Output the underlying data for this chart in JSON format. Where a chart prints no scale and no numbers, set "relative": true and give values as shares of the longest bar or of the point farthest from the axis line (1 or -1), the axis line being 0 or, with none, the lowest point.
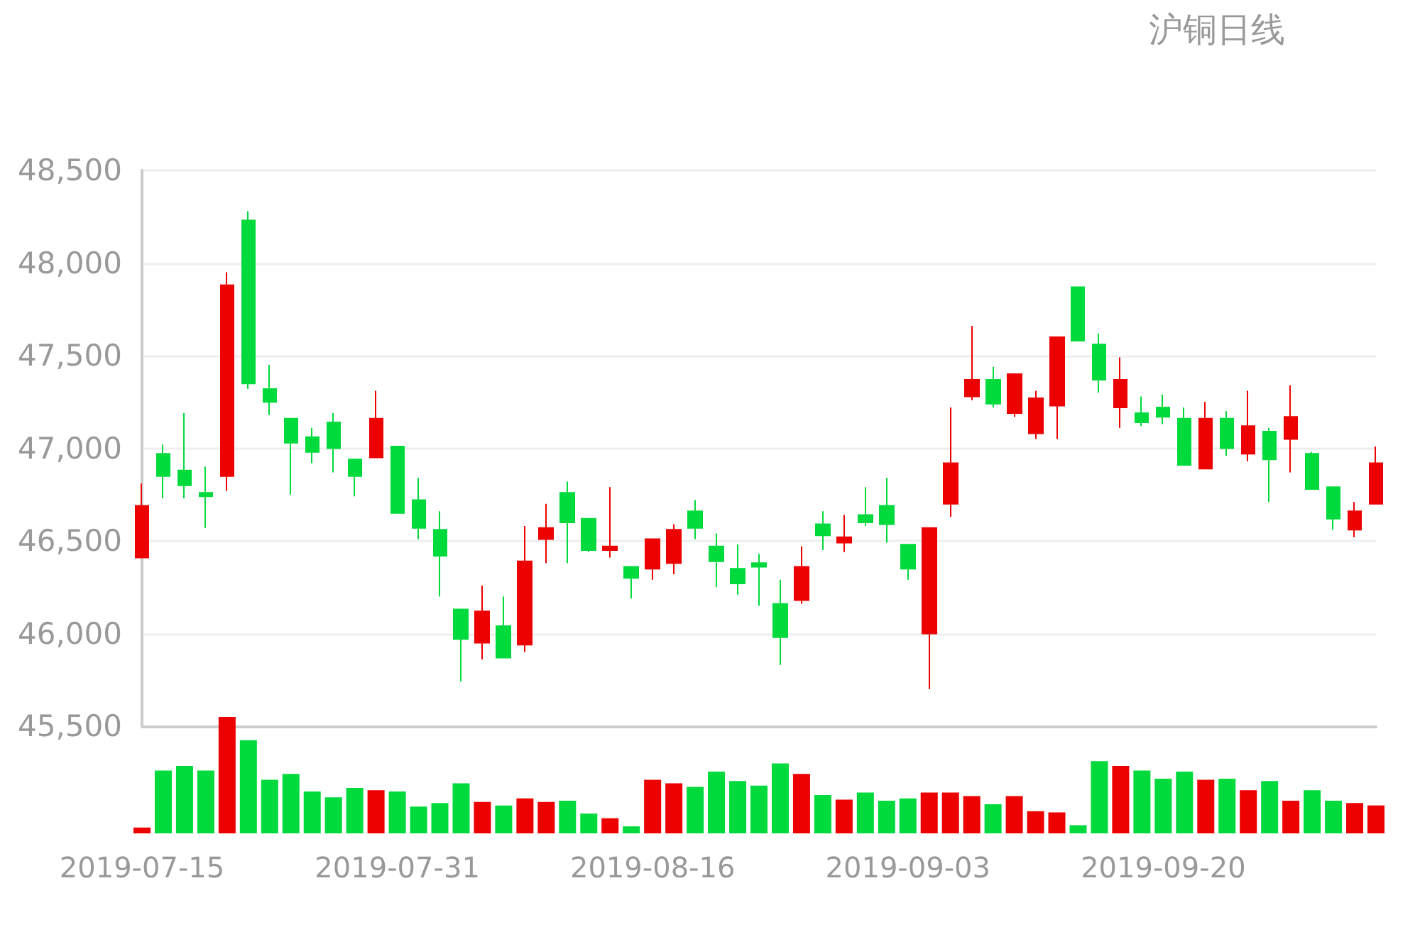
{
  "chart_data": [
    {
      "type": "candlestick",
      "title": "沪铜日线",
      "categories": [
        "2019-07-15",
        null,
        null,
        null,
        null,
        null,
        null,
        null,
        null,
        null,
        null,
        null,
        "2019-07-31",
        null,
        null,
        null,
        null,
        null,
        null,
        null,
        null,
        null,
        null,
        null,
        "2019-08-16",
        null,
        null,
        null,
        null,
        null,
        null,
        null,
        null,
        null,
        null,
        null,
        "2019-09-03",
        null,
        null,
        null,
        null,
        null,
        null,
        null,
        null,
        null,
        null,
        null,
        "2019-09-20",
        null,
        null,
        null,
        null,
        null,
        null,
        null,
        null,
        null,
        null
      ],
      "ohlc": [
        [
          46410,
          46810,
          46410,
          46690
        ],
        [
          46970,
          47020,
          46730,
          46850
        ],
        [
          46880,
          47190,
          46730,
          46800
        ],
        [
          46760,
          46900,
          46570,
          46740
        ],
        [
          46850,
          47950,
          46770,
          47880
        ],
        [
          48230,
          48280,
          47320,
          47350
        ],
        [
          47320,
          47450,
          47180,
          47250
        ],
        [
          47160,
          47160,
          46750,
          47030
        ],
        [
          47060,
          47110,
          46920,
          46980
        ],
        [
          47140,
          47190,
          46870,
          47000
        ],
        [
          46940,
          46940,
          46740,
          46850
        ],
        [
          46950,
          47310,
          46950,
          47160
        ],
        [
          47010,
          47010,
          46650,
          46650
        ],
        [
          46720,
          46840,
          46510,
          46570
        ],
        [
          46560,
          46660,
          46200,
          46420
        ],
        [
          46130,
          46130,
          45740,
          45970
        ],
        [
          45950,
          46260,
          45860,
          46120
        ],
        [
          46040,
          46200,
          45870,
          45870
        ],
        [
          45940,
          46580,
          45900,
          46390
        ],
        [
          46510,
          46700,
          46380,
          46570
        ],
        [
          46760,
          46820,
          46380,
          46600
        ],
        [
          46620,
          46620,
          46440,
          46450
        ],
        [
          46450,
          46790,
          46410,
          46470
        ],
        [
          46360,
          46360,
          46190,
          46300
        ],
        [
          46350,
          46510,
          46290,
          46510
        ],
        [
          46380,
          46590,
          46320,
          46560
        ],
        [
          46660,
          46720,
          46510,
          46570
        ],
        [
          46470,
          46540,
          46250,
          46390
        ],
        [
          46350,
          46480,
          46210,
          46270
        ],
        [
          46380,
          46430,
          46150,
          46360
        ],
        [
          46160,
          46290,
          45830,
          45980
        ],
        [
          46180,
          46470,
          46160,
          46360
        ],
        [
          46590,
          46660,
          46450,
          46530
        ],
        [
          46490,
          46640,
          46440,
          46520
        ],
        [
          46640,
          46790,
          46580,
          46600
        ],
        [
          46690,
          46840,
          46490,
          46590
        ],
        [
          46480,
          46480,
          46290,
          46350
        ],
        [
          46000,
          46570,
          45700,
          46570
        ],
        [
          46700,
          47220,
          46630,
          46920
        ],
        [
          47280,
          47660,
          47260,
          47370
        ],
        [
          47370,
          47440,
          47220,
          47240
        ],
        [
          47190,
          47400,
          47170,
          47400
        ],
        [
          47080,
          47310,
          47050,
          47270
        ],
        [
          47230,
          47600,
          47050,
          47600
        ],
        [
          47870,
          47870,
          47580,
          47580
        ],
        [
          47560,
          47620,
          47300,
          47370
        ],
        [
          47220,
          47490,
          47110,
          47370
        ],
        [
          47190,
          47280,
          47120,
          47140
        ],
        [
          47220,
          47290,
          47130,
          47170
        ],
        [
          47160,
          47220,
          46910,
          46910
        ],
        [
          46890,
          47250,
          46890,
          47160
        ],
        [
          47160,
          47200,
          46960,
          47000
        ],
        [
          46970,
          47310,
          46930,
          47120
        ],
        [
          47090,
          47110,
          46710,
          46940
        ],
        [
          47050,
          47340,
          46870,
          47170
        ],
        [
          46970,
          46980,
          46780,
          46780
        ],
        [
          46790,
          46790,
          46560,
          46620
        ],
        [
          46560,
          46710,
          46520,
          46660
        ],
        [
          46700,
          47010,
          46700,
          46920
        ]
      ],
      "colors": [
        "#ec0000",
        "#00da3c",
        "#00da3c",
        "#00da3c",
        "#ec0000",
        "#00da3c",
        "#00da3c",
        "#00da3c",
        "#00da3c",
        "#00da3c",
        "#00da3c",
        "#ec0000",
        "#00da3c",
        "#00da3c",
        "#00da3c",
        "#00da3c",
        "#ec0000",
        "#00da3c",
        "#ec0000",
        "#ec0000",
        "#00da3c",
        "#00da3c",
        "#ec0000",
        "#00da3c",
        "#ec0000",
        "#ec0000",
        "#00da3c",
        "#00da3c",
        "#00da3c",
        "#00da3c",
        "#00da3c",
        "#ec0000",
        "#00da3c",
        "#ec0000",
        "#00da3c",
        "#00da3c",
        "#00da3c",
        "#ec0000",
        "#ec0000",
        "#ec0000",
        "#00da3c",
        "#ec0000",
        "#ec0000",
        "#ec0000",
        "#00da3c",
        "#00da3c",
        "#ec0000",
        "#00da3c",
        "#00da3c",
        "#00da3c",
        "#ec0000",
        "#00da3c",
        "#ec0000",
        "#00da3c",
        "#ec0000",
        "#00da3c",
        "#00da3c",
        "#ec0000",
        "#ec0000"
      ],
      "ylim": [
        45500,
        48500
      ],
      "yticks": [
        {
          "value": 45500,
          "label": "45,500"
        },
        {
          "value": 46000,
          "label": "46,000"
        },
        {
          "value": 46500,
          "label": "46,500"
        },
        {
          "value": 47000,
          "label": "47,000"
        },
        {
          "value": 47500,
          "label": "47,500"
        },
        {
          "value": 48000,
          "label": "48,000"
        },
        {
          "value": 48500,
          "label": "48,500"
        }
      ],
      "grid": "y",
      "tick_labels": "y"
    },
    {
      "type": "bar",
      "relative": true,
      "tick_labels": "x",
      "categories": [
        "2019-07-15",
        null,
        null,
        null,
        null,
        null,
        null,
        null,
        null,
        null,
        null,
        null,
        "2019-07-31",
        null,
        null,
        null,
        null,
        null,
        null,
        null,
        null,
        null,
        null,
        null,
        "2019-08-16",
        null,
        null,
        null,
        null,
        null,
        null,
        null,
        null,
        null,
        null,
        null,
        "2019-09-03",
        null,
        null,
        null,
        null,
        null,
        null,
        null,
        null,
        null,
        null,
        null,
        "2019-09-20",
        null,
        null,
        null,
        null,
        null,
        null,
        null,
        null,
        null,
        null
      ],
      "values": [
        0.05,
        0.54,
        0.58,
        0.54,
        1,
        0.8,
        0.46,
        0.51,
        0.36,
        0.31,
        0.39,
        0.37,
        0.36,
        0.23,
        0.26,
        0.43,
        0.27,
        0.24,
        0.3,
        0.27,
        0.28,
        0.17,
        0.13,
        0.06,
        0.46,
        0.43,
        0.4,
        0.53,
        0.45,
        0.41,
        0.6,
        0.51,
        0.33,
        0.29,
        0.35,
        0.28,
        0.3,
        0.35,
        0.35,
        0.32,
        0.25,
        0.32,
        0.19,
        0.18,
        0.07,
        0.62,
        0.58,
        0.54,
        0.47,
        0.53,
        0.46,
        0.47,
        0.37,
        0.45,
        0.28,
        0.37,
        0.28,
        0.26,
        0.24
      ],
      "colors": [
        "#ec0000",
        "#00da3c",
        "#00da3c",
        "#00da3c",
        "#ec0000",
        "#00da3c",
        "#00da3c",
        "#00da3c",
        "#00da3c",
        "#00da3c",
        "#00da3c",
        "#ec0000",
        "#00da3c",
        "#00da3c",
        "#00da3c",
        "#00da3c",
        "#ec0000",
        "#00da3c",
        "#ec0000",
        "#ec0000",
        "#00da3c",
        "#00da3c",
        "#ec0000",
        "#00da3c",
        "#ec0000",
        "#ec0000",
        "#00da3c",
        "#00da3c",
        "#00da3c",
        "#00da3c",
        "#00da3c",
        "#ec0000",
        "#00da3c",
        "#ec0000",
        "#00da3c",
        "#00da3c",
        "#00da3c",
        "#ec0000",
        "#ec0000",
        "#ec0000",
        "#00da3c",
        "#ec0000",
        "#ec0000",
        "#ec0000",
        "#00da3c",
        "#00da3c",
        "#ec0000",
        "#00da3c",
        "#00da3c",
        "#00da3c",
        "#ec0000",
        "#00da3c",
        "#ec0000",
        "#00da3c",
        "#ec0000",
        "#00da3c",
        "#00da3c",
        "#ec0000",
        "#ec0000"
      ]
    }
  ]
}
